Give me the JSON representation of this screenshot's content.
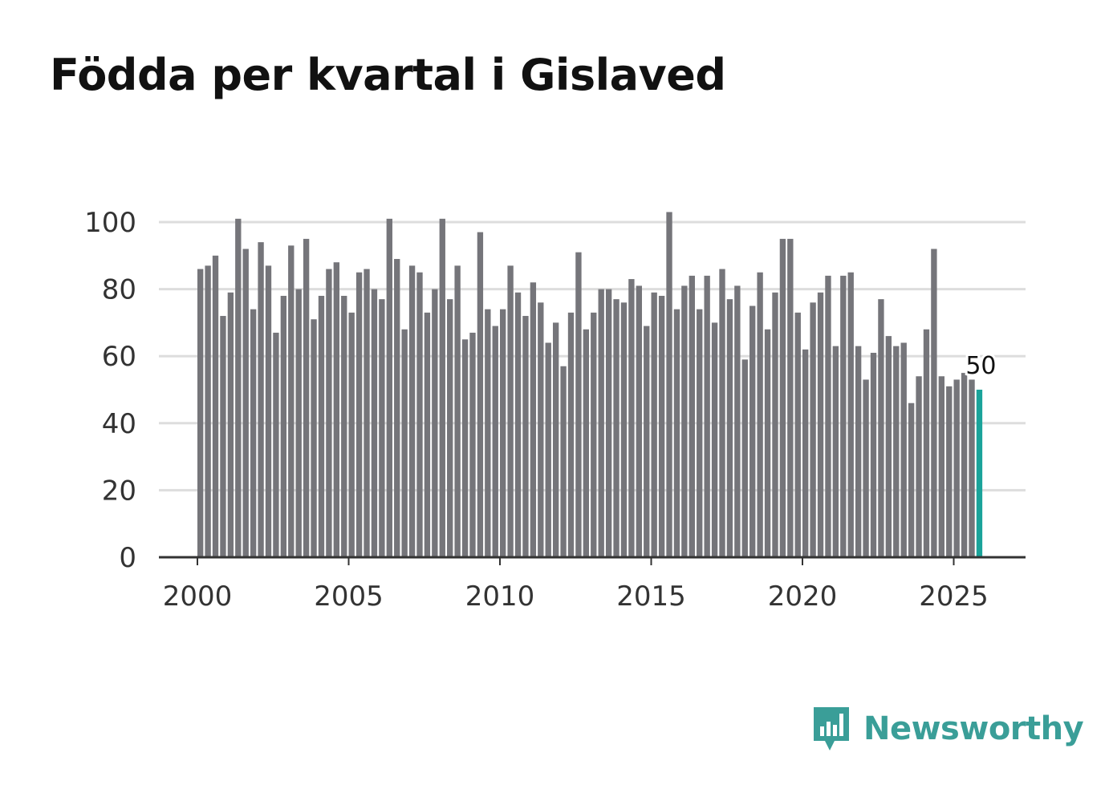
{
  "title": "Födda per kvartal i Gislaved",
  "brand": {
    "name": "Newsworthy",
    "icon": "newsworthy-logo-icon"
  },
  "colors": {
    "bar": "#75757a",
    "highlight": "#1aa39a",
    "grid": "#dddddd",
    "axis": "#333333",
    "brand": "#3a9e98"
  },
  "chart_data": {
    "type": "bar",
    "title": "Födda per kvartal i Gislaved",
    "xlabel": "",
    "ylabel": "",
    "ylim": [
      0,
      100
    ],
    "yticks": [
      0,
      20,
      40,
      60,
      80,
      100
    ],
    "xticks": [
      2000,
      2005,
      2010,
      2015,
      2020,
      2025
    ],
    "x_start": 2000,
    "periods_per_year": 4,
    "grid": true,
    "legend": "none",
    "highlight_last": true,
    "last_value_label": "50",
    "values": [
      86,
      87,
      90,
      72,
      79,
      101,
      92,
      74,
      94,
      87,
      67,
      78,
      93,
      80,
      95,
      71,
      78,
      86,
      88,
      78,
      73,
      85,
      86,
      80,
      77,
      101,
      89,
      68,
      87,
      85,
      73,
      80,
      101,
      77,
      87,
      65,
      67,
      97,
      74,
      69,
      74,
      87,
      79,
      72,
      82,
      76,
      64,
      70,
      57,
      73,
      91,
      68,
      73,
      80,
      80,
      77,
      76,
      83,
      81,
      69,
      79,
      78,
      103,
      74,
      81,
      84,
      74,
      84,
      70,
      86,
      77,
      81,
      59,
      75,
      85,
      68,
      79,
      95,
      95,
      73,
      62,
      76,
      79,
      84,
      63,
      84,
      85,
      63,
      53,
      61,
      77,
      66,
      63,
      64,
      46,
      54,
      68,
      92,
      54,
      51,
      53,
      55,
      53,
      50
    ]
  }
}
